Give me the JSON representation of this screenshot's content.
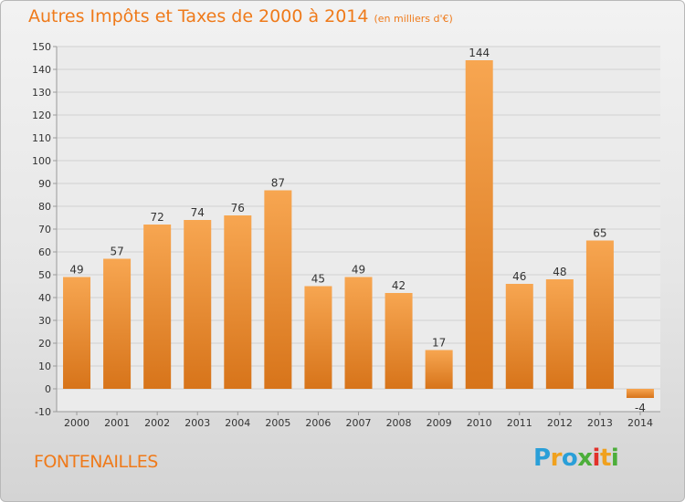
{
  "colors": {
    "accent": "#ef7a1a",
    "bar_top": "#f7a651",
    "bar_bottom": "#d7741a",
    "axis": "#9a9a9a",
    "gridline": "#d0d0d0",
    "text": "#333333"
  },
  "chart_data": {
    "type": "bar",
    "title": "Autres Impôts et Taxes de 2000 à 2014",
    "subtitle": "(en milliers d'€)",
    "categories": [
      "2000",
      "2001",
      "2002",
      "2003",
      "2004",
      "2005",
      "2006",
      "2007",
      "2008",
      "2009",
      "2010",
      "2011",
      "2012",
      "2013",
      "2014"
    ],
    "values": [
      49,
      57,
      72,
      74,
      76,
      87,
      45,
      49,
      42,
      17,
      144,
      46,
      48,
      65,
      -4
    ],
    "data_labels": [
      "49",
      "57",
      "72",
      "74",
      "76",
      "87",
      "45",
      "49",
      "42",
      "17",
      "144",
      "46",
      "48",
      "65",
      "-4"
    ],
    "yticks": [
      "150",
      "140",
      "130",
      "120",
      "110",
      "100",
      "90",
      "80",
      "70",
      "60",
      "50",
      "40",
      "30",
      "20",
      "10",
      "0",
      "-10"
    ],
    "ylim": [
      -10,
      150
    ],
    "grid": "horizontal",
    "legend": "none"
  },
  "footer": {
    "commune": "FONTENAILLES",
    "logo_text": "Proxiti",
    "logo_colors": [
      "#2a9fd8",
      "#f0a11e",
      "#2a9fd8",
      "#4cae3a",
      "#e2312a",
      "#f0a11e",
      "#4cae3a"
    ]
  }
}
